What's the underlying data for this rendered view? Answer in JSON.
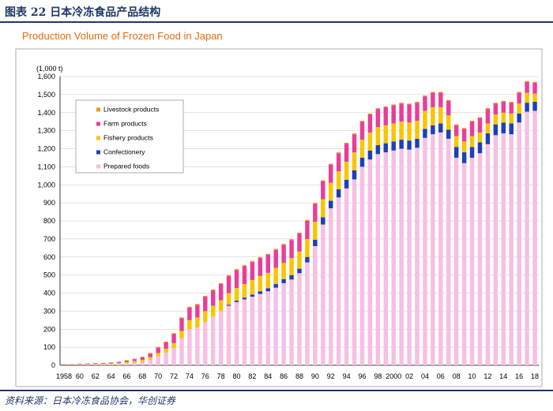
{
  "header": {
    "figure_title": "图表 22 日本冷冻食品产品结构",
    "source": "资料来源：日本冷冻食品协会，华创证券"
  },
  "colors": {
    "prepared_foods": "#f6bfe4",
    "confectionery": "#1f3fb8",
    "fishery_products": "#f7c600",
    "farm_products": "#ea3d9a",
    "livestock_products": "#ee9a1a",
    "title_orange": "#e36c0a",
    "navy": "#1f3864"
  },
  "chart_data": {
    "type": "bar",
    "stacked": true,
    "title": "Production Volume of Frozen Food in Japan",
    "unit_label": "(1,000 t)",
    "ylim": [
      0,
      1600
    ],
    "y_ticks": [
      "0",
      "100",
      "200",
      "300",
      "400",
      "500",
      "600",
      "700",
      "800",
      "900",
      "1,000",
      "1,100",
      "1,200",
      "1,300",
      "1,400",
      "1,500",
      "1,600"
    ],
    "grid": true,
    "legend_position": "top-left",
    "x": [
      1958,
      1959,
      1960,
      1961,
      1962,
      1963,
      1964,
      1965,
      1966,
      1967,
      1968,
      1969,
      1970,
      1971,
      1972,
      1973,
      1974,
      1975,
      1976,
      1977,
      1978,
      1979,
      1980,
      1981,
      1982,
      1983,
      1984,
      1985,
      1986,
      1987,
      1988,
      1989,
      1990,
      1991,
      1992,
      1993,
      1994,
      1995,
      1996,
      1997,
      1998,
      1999,
      2000,
      2001,
      2002,
      2003,
      2004,
      2005,
      2006,
      2007,
      2008,
      2009,
      2010,
      2011,
      2012,
      2013,
      2014,
      2015,
      2016,
      2017,
      2018
    ],
    "x_tick_labels": [
      {
        "index": 0,
        "label": "1958"
      },
      {
        "index": 2,
        "label": "60"
      },
      {
        "index": 4,
        "label": "62"
      },
      {
        "index": 6,
        "label": "64"
      },
      {
        "index": 8,
        "label": "66"
      },
      {
        "index": 10,
        "label": "68"
      },
      {
        "index": 12,
        "label": "70"
      },
      {
        "index": 14,
        "label": "72"
      },
      {
        "index": 16,
        "label": "74"
      },
      {
        "index": 18,
        "label": "76"
      },
      {
        "index": 20,
        "label": "78"
      },
      {
        "index": 22,
        "label": "80"
      },
      {
        "index": 24,
        "label": "82"
      },
      {
        "index": 26,
        "label": "84"
      },
      {
        "index": 28,
        "label": "86"
      },
      {
        "index": 30,
        "label": "88"
      },
      {
        "index": 32,
        "label": "90"
      },
      {
        "index": 34,
        "label": "92"
      },
      {
        "index": 36,
        "label": "94"
      },
      {
        "index": 38,
        "label": "96"
      },
      {
        "index": 40,
        "label": "98"
      },
      {
        "index": 42,
        "label": "2000"
      },
      {
        "index": 44,
        "label": "02"
      },
      {
        "index": 46,
        "label": "04"
      },
      {
        "index": 48,
        "label": "06"
      },
      {
        "index": 50,
        "label": "08"
      },
      {
        "index": 52,
        "label": "10"
      },
      {
        "index": 54,
        "label": "12"
      },
      {
        "index": 56,
        "label": "14"
      },
      {
        "index": 58,
        "label": "16"
      },
      {
        "index": 60,
        "label": "18"
      }
    ],
    "series": [
      {
        "name": "Prepared foods",
        "color_key": "prepared_foods",
        "values": [
          1,
          1,
          2,
          3,
          3,
          4,
          5,
          7,
          10,
          14,
          18,
          30,
          50,
          70,
          95,
          150,
          200,
          210,
          240,
          270,
          300,
          330,
          350,
          365,
          380,
          395,
          410,
          430,
          455,
          475,
          510,
          570,
          660,
          780,
          870,
          930,
          980,
          1030,
          1100,
          1140,
          1170,
          1180,
          1190,
          1200,
          1195,
          1205,
          1260,
          1280,
          1290,
          1255,
          1150,
          1120,
          1150,
          1175,
          1225,
          1275,
          1285,
          1280,
          1345,
          1405,
          1410
        ]
      },
      {
        "name": "Confectionery",
        "color_key": "confectionery",
        "values": [
          0,
          0,
          0,
          0,
          0,
          0,
          0,
          0,
          0,
          0,
          0,
          0,
          0,
          0,
          0,
          0,
          0,
          0,
          0,
          0,
          0,
          5,
          8,
          10,
          12,
          15,
          17,
          20,
          22,
          24,
          25,
          30,
          35,
          40,
          42,
          45,
          48,
          50,
          50,
          50,
          50,
          50,
          50,
          50,
          50,
          50,
          50,
          50,
          50,
          50,
          60,
          60,
          60,
          60,
          60,
          60,
          60,
          60,
          50,
          50,
          50
        ]
      },
      {
        "name": "Fishery products",
        "color_key": "fishery_products",
        "values": [
          2,
          2,
          3,
          3,
          4,
          4,
          5,
          6,
          8,
          10,
          12,
          15,
          18,
          22,
          28,
          40,
          50,
          55,
          60,
          60,
          60,
          65,
          70,
          75,
          80,
          85,
          85,
          90,
          90,
          95,
          95,
          100,
          100,
          100,
          100,
          100,
          100,
          100,
          100,
          100,
          100,
          100,
          100,
          100,
          100,
          100,
          100,
          100,
          90,
          80,
          60,
          60,
          60,
          55,
          55,
          55,
          55,
          55,
          55,
          55,
          45
        ]
      },
      {
        "name": "Farm products",
        "color_key": "farm_products",
        "values": [
          2,
          2,
          3,
          3,
          4,
          4,
          5,
          6,
          8,
          10,
          15,
          20,
          30,
          35,
          50,
          70,
          70,
          70,
          80,
          85,
          90,
          95,
          100,
          100,
          100,
          100,
          100,
          100,
          100,
          100,
          100,
          100,
          100,
          100,
          100,
          100,
          100,
          100,
          100,
          100,
          100,
          100,
          100,
          100,
          100,
          100,
          80,
          80,
          80,
          80,
          60,
          70,
          80,
          80,
          80,
          60,
          60,
          60,
          60,
          60,
          60
        ]
      },
      {
        "name": "Livestock products",
        "color_key": "livestock_products",
        "values": [
          1,
          1,
          1,
          1,
          1,
          1,
          1,
          1,
          2,
          2,
          3,
          3,
          4,
          4,
          5,
          5,
          5,
          5,
          5,
          5,
          5,
          5,
          5,
          5,
          5,
          5,
          5,
          5,
          5,
          5,
          5,
          5,
          5,
          5,
          5,
          5,
          5,
          5,
          5,
          5,
          5,
          5,
          5,
          5,
          5,
          5,
          5,
          5,
          5,
          5,
          5,
          5,
          5,
          5,
          5,
          5,
          5,
          5,
          5,
          5,
          5
        ]
      }
    ],
    "legend_order": [
      "Livestock products",
      "Farm products",
      "Fishery products",
      "Confectionery",
      "Prepared foods"
    ]
  }
}
